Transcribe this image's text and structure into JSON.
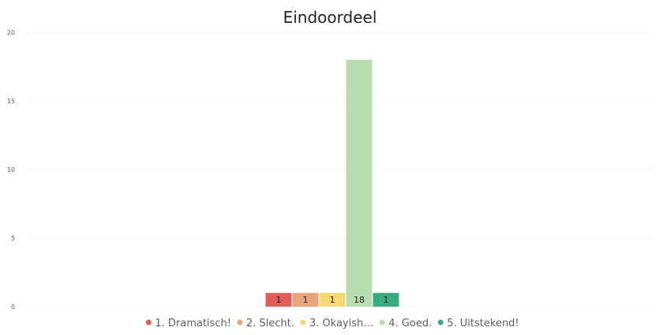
{
  "chart_data": {
    "type": "bar",
    "title": "Eindoordeel",
    "xlabel": "",
    "ylabel": "",
    "ylim": [
      0,
      20
    ],
    "yticks": [
      "0",
      "5",
      "10",
      "15",
      "20"
    ],
    "grid": true,
    "legend_position": "bottom",
    "series": [
      {
        "name": "1. Dramatisch!",
        "values": [
          1
        ],
        "color": "#e05c57",
        "data_label": "1"
      },
      {
        "name": "2. Slecht.",
        "values": [
          1
        ],
        "color": "#e8a57c",
        "data_label": "1"
      },
      {
        "name": "3. Okayish...",
        "legend_label": "3. Okayish…",
        "values": [
          1
        ],
        "color": "#f6d874",
        "data_label": "1"
      },
      {
        "name": "4. Goed.",
        "values": [
          18
        ],
        "color": "#b7ddb1",
        "data_label": "18"
      },
      {
        "name": "5. Uitstekend!",
        "values": [
          1
        ],
        "color": "#3aac80",
        "data_label": "1"
      }
    ]
  }
}
